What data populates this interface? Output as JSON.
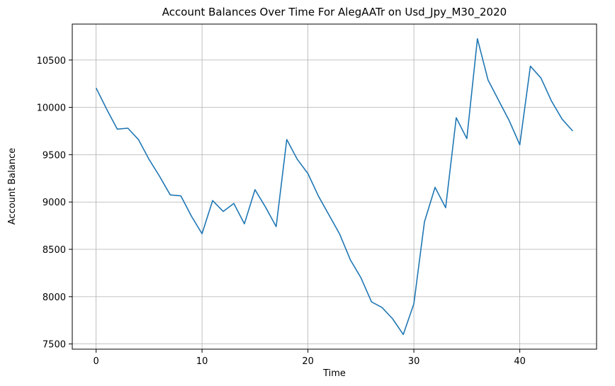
{
  "chart_data": {
    "type": "line",
    "title": "Account Balances Over Time For AlegAATr on Usd_Jpy_M30_2020",
    "xlabel": "Time",
    "ylabel": "Account Balance",
    "xlim": [
      -2.25,
      47.25
    ],
    "ylim": [
      7445,
      10880
    ],
    "xticks": [
      0,
      10,
      20,
      30,
      40
    ],
    "yticks": [
      7500,
      8000,
      8500,
      9000,
      9500,
      10000,
      10500
    ],
    "grid": true,
    "line_color": "#1f77b4",
    "series": [
      {
        "values": [
          10205,
          9980,
          9770,
          9780,
          9660,
          9450,
          9270,
          9075,
          9065,
          8850,
          8665,
          9015,
          8900,
          8985,
          8770,
          9130,
          8945,
          8740,
          9660,
          9450,
          9300,
          9060,
          8860,
          8660,
          8390,
          8200,
          7945,
          7885,
          7765,
          7600,
          7925,
          8790,
          9155,
          8940,
          9890,
          9670,
          10725,
          10290,
          10075,
          9860,
          9605,
          10435,
          10310,
          10065,
          9875,
          9750
        ]
      }
    ]
  }
}
